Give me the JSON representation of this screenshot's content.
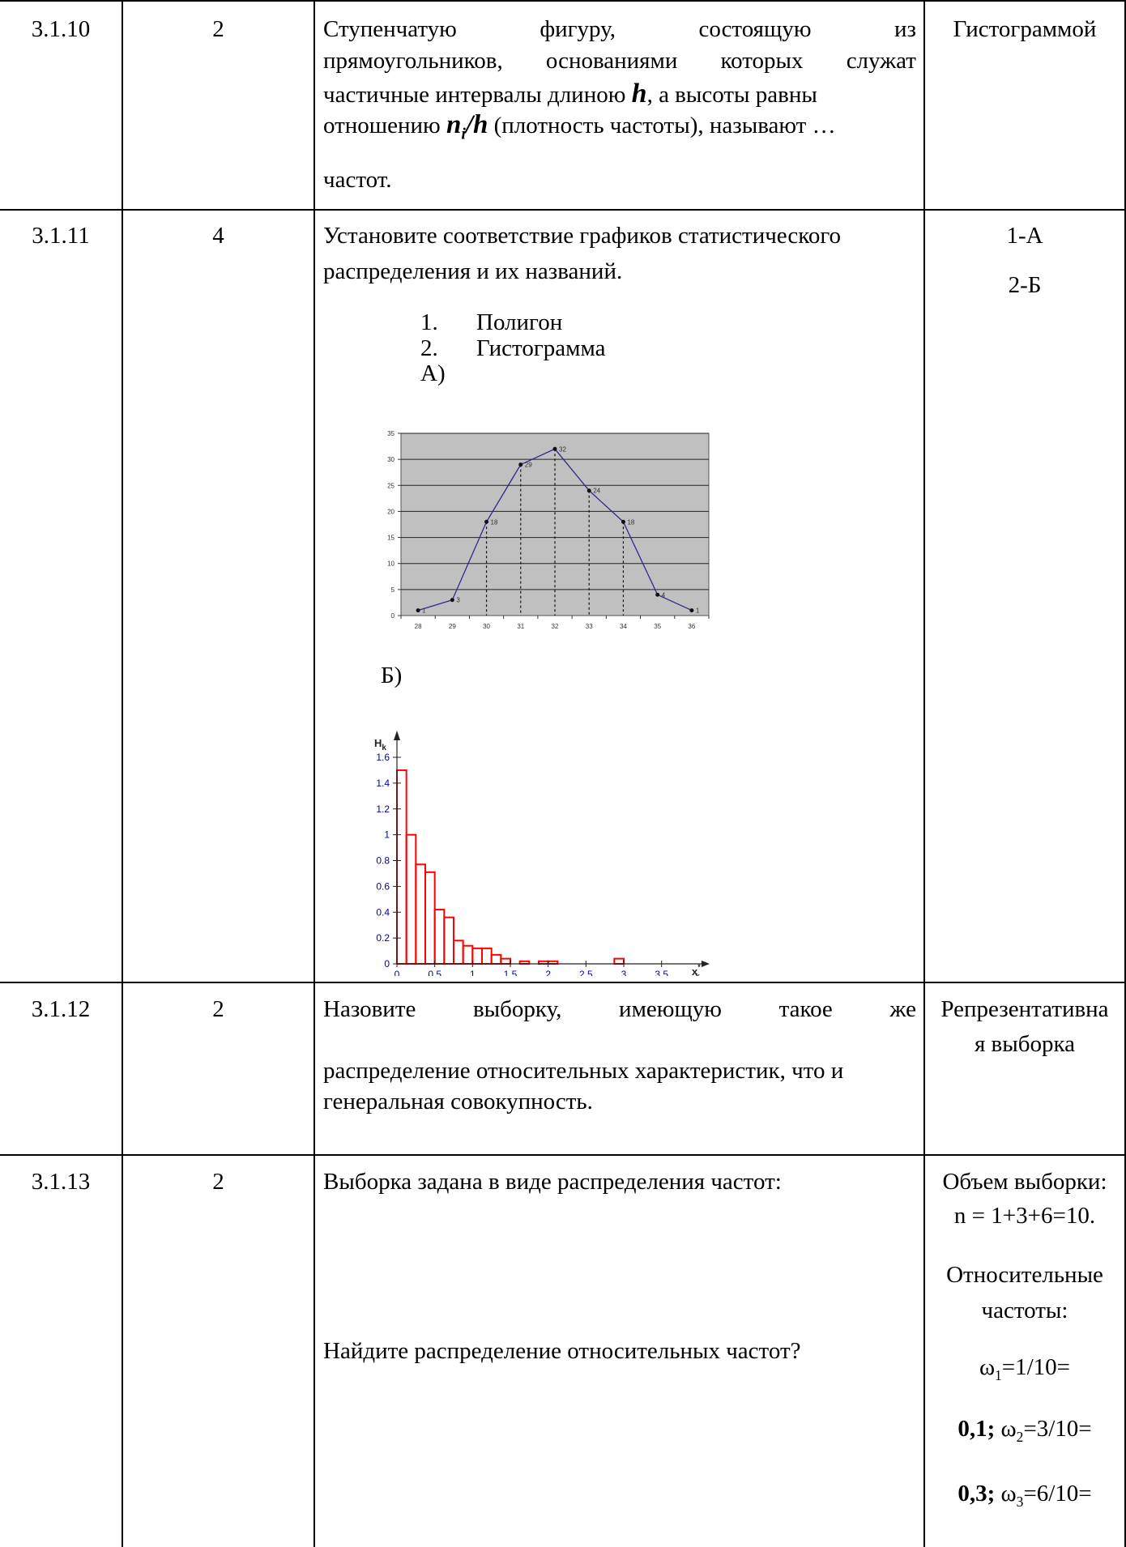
{
  "rows": [
    {
      "num": "3.1.10",
      "score": "2",
      "q_line1_words": [
        "Ступенчатую",
        "фигуру,",
        "состоящую",
        "из"
      ],
      "q_line2_words": [
        "прямоугольников,",
        "основаниями",
        "которых",
        "служат"
      ],
      "q_line3_pre": "частичные интервалы длиною",
      "q_line3_var": "h",
      "q_line3_post": ", а высоты равны",
      "q_line4_pre": "отношению",
      "q_line4_formula": "n",
      "q_line4_formula_sub": "i",
      "q_line4_formula_div": "/h",
      "q_line4_post": "(плотность частоты), называют …",
      "q_line5": "частот.",
      "answer": "Гистограммой"
    },
    {
      "num": "3.1.11",
      "score": "4",
      "q_line1": "Установите соответствие графиков статистического",
      "q_line2": "распределения и их названий.",
      "list": [
        {
          "n": "1.",
          "label": "Полигон"
        },
        {
          "n": "2.",
          "label": "Гистограмма"
        }
      ],
      "label_a": "А)",
      "label_b": "Б)",
      "answer_1": "1-А",
      "answer_2": "2-Б"
    },
    {
      "num": "3.1.12",
      "score": "2",
      "q_line1_words": [
        "Назовите",
        "выборку,",
        "имеющую",
        "такое",
        "же"
      ],
      "q_line2": "распределение относительных характеристик, что и",
      "q_line3": "генеральная совокупность.",
      "answer_line1": "Репрезентативна",
      "answer_line2": "я выборка"
    },
    {
      "num": "3.1.13",
      "score": "2",
      "q_line1": "Выборка задана в виде распределения частот:",
      "q_line2": "Найдите распределение относительных частот?",
      "answer_l1": "Объем выборки:",
      "answer_l2": "n = 1+3+6=10.",
      "answer_l3": "Относительные",
      "answer_l4": "частоты:",
      "answer_l5_sym": "ω",
      "answer_l5_sub": "1",
      "answer_l5_rest": "=1/10=",
      "answer_l6_bold": "0,1;",
      "answer_l6_sym": "ω",
      "answer_l6_sub": "2",
      "answer_l6_rest": "=3/10=",
      "answer_l7_bold": "0,3;",
      "answer_l7_sym": "ω",
      "answer_l7_sub": "3",
      "answer_l7_rest": "=6/10="
    }
  ],
  "chart_data": [
    {
      "type": "line",
      "x": [
        28,
        29,
        30,
        31,
        32,
        33,
        34,
        35,
        36
      ],
      "values": [
        1,
        3,
        18,
        29,
        32,
        24,
        18,
        4,
        1
      ],
      "data_labels": [
        "1",
        "3",
        "18",
        "29",
        "32",
        "24",
        "18",
        "4",
        "1"
      ],
      "x_tick_labels": [
        "28",
        "29",
        "30",
        "31",
        "32",
        "33",
        "34",
        "35",
        "36"
      ],
      "y_tick_labels": [
        "0",
        "5",
        "10",
        "15",
        "20",
        "25",
        "30",
        "35"
      ],
      "ylim": [
        0,
        35
      ],
      "grid": true,
      "colors": {
        "background": "#c0c0c0",
        "line": "#2a2a8a",
        "gridline": "#222222"
      }
    },
    {
      "type": "bar",
      "ylabel": "H",
      "ylabel_sub": "k",
      "xlabel": "x",
      "xlabel_sub": "k",
      "xlabel_sup": "*",
      "bin_width": 0.125,
      "values": [
        1.5,
        1.0,
        0.77,
        0.71,
        0.42,
        0.36,
        0.18,
        0.14,
        0.12,
        0.12,
        0.07,
        0.04,
        0.0,
        0.02,
        0.0,
        0.02,
        0.02,
        0.0,
        0.0,
        0.0,
        0.0,
        0.0,
        0.0,
        0.04
      ],
      "x_tick_labels": [
        "0",
        "0.5",
        "1",
        "1.5",
        "2",
        "2.5",
        "3",
        "3.5"
      ],
      "y_tick_labels": [
        "0",
        "0.2",
        "0.4",
        "0.6",
        "0.8",
        "1",
        "1.2",
        "1.4",
        "1.6"
      ],
      "ylim": [
        0,
        1.6
      ],
      "xlim": [
        0,
        3.75
      ],
      "colors": {
        "bars": "#ff0000",
        "axis": "#222222",
        "ticks": "#0000aa"
      }
    }
  ]
}
